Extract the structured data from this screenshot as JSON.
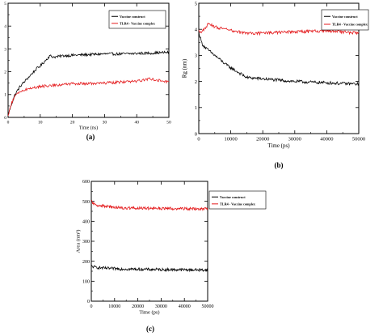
{
  "chart_data": [
    {
      "panel": "(a)",
      "type": "line",
      "xlabel": "Time (ns)",
      "ylabel": "RMSD (nm)",
      "xlim": [
        0,
        50
      ],
      "ylim": [
        0,
        5
      ],
      "xticks": [
        0,
        10,
        20,
        30,
        40,
        50
      ],
      "yticks": [
        0,
        1,
        2,
        3,
        4,
        5
      ],
      "legend": "top-right",
      "series": [
        {
          "name": "Vaccine construct",
          "color": "#000000",
          "x": [
            0,
            1,
            2,
            3,
            4,
            5,
            6,
            7,
            8,
            9,
            10,
            11,
            12,
            13,
            14,
            15,
            17,
            20,
            25,
            30,
            35,
            40,
            45,
            50
          ],
          "y": [
            0.1,
            0.55,
            0.95,
            1.2,
            1.4,
            1.55,
            1.7,
            1.85,
            2.0,
            2.15,
            2.25,
            2.4,
            2.55,
            2.7,
            2.65,
            2.65,
            2.7,
            2.72,
            2.75,
            2.78,
            2.78,
            2.8,
            2.82,
            2.85
          ]
        },
        {
          "name": "TLR4 - Vaccine complex",
          "color": "#e41a1c",
          "x": [
            0,
            1,
            2,
            3,
            4,
            5,
            7,
            10,
            15,
            20,
            25,
            30,
            35,
            40,
            44,
            47,
            50
          ],
          "y": [
            0.05,
            0.6,
            0.9,
            1.05,
            1.15,
            1.2,
            1.28,
            1.35,
            1.42,
            1.47,
            1.48,
            1.5,
            1.55,
            1.58,
            1.7,
            1.62,
            1.55
          ]
        }
      ]
    },
    {
      "panel": "(b)",
      "type": "line",
      "xlabel": "Time (ps)",
      "ylabel": "Rg (nm)",
      "xlim": [
        0,
        50000
      ],
      "ylim": [
        0,
        5
      ],
      "xticks": [
        0,
        10000,
        20000,
        30000,
        40000,
        50000
      ],
      "yticks": [
        0,
        1,
        2,
        3,
        4,
        5
      ],
      "legend": "top-right",
      "series": [
        {
          "name": "Vaccine construct",
          "color": "#000000",
          "x": [
            0,
            1000,
            2000,
            3000,
            5000,
            7000,
            9000,
            11000,
            13000,
            15000,
            20000,
            25000,
            30000,
            35000,
            40000,
            45000,
            50000
          ],
          "y": [
            3.9,
            3.45,
            3.3,
            3.2,
            3.0,
            2.8,
            2.6,
            2.45,
            2.3,
            2.15,
            2.1,
            2.05,
            2.0,
            1.97,
            1.95,
            1.92,
            1.9
          ]
        },
        {
          "name": "TLR4 - Vaccine complex",
          "color": "#e41a1c",
          "x": [
            0,
            1000,
            3000,
            5000,
            8000,
            12000,
            15000,
            20000,
            25000,
            30000,
            35000,
            40000,
            45000,
            50000
          ],
          "y": [
            3.95,
            3.9,
            4.2,
            4.1,
            4.0,
            3.9,
            3.85,
            3.85,
            3.88,
            3.9,
            3.92,
            3.95,
            3.9,
            3.85
          ]
        }
      ]
    },
    {
      "panel": "(c)",
      "type": "line",
      "xlabel": "Time (ps)",
      "ylabel": "Area (nm²)",
      "xlim": [
        0,
        50000
      ],
      "ylim": [
        0,
        600
      ],
      "xticks": [
        0,
        10000,
        20000,
        30000,
        40000,
        50000
      ],
      "yticks": [
        0,
        100,
        200,
        300,
        400,
        500,
        600
      ],
      "legend": "top-right",
      "series": [
        {
          "name": "Vaccine construct",
          "color": "#000000",
          "x": [
            0,
            1000,
            3000,
            6000,
            10000,
            15000,
            20000,
            25000,
            30000,
            35000,
            40000,
            45000,
            50000
          ],
          "y": [
            175,
            172,
            168,
            165,
            163,
            161,
            160,
            159,
            158,
            158,
            157,
            157,
            156
          ]
        },
        {
          "name": "TLR4 - Vaccine complex",
          "color": "#e41a1c",
          "x": [
            0,
            1000,
            2000,
            4000,
            7000,
            10000,
            15000,
            20000,
            25000,
            30000,
            35000,
            40000,
            45000,
            50000
          ],
          "y": [
            500,
            490,
            482,
            478,
            474,
            470,
            467,
            466,
            465,
            464,
            464,
            463,
            463,
            463
          ]
        }
      ]
    }
  ]
}
